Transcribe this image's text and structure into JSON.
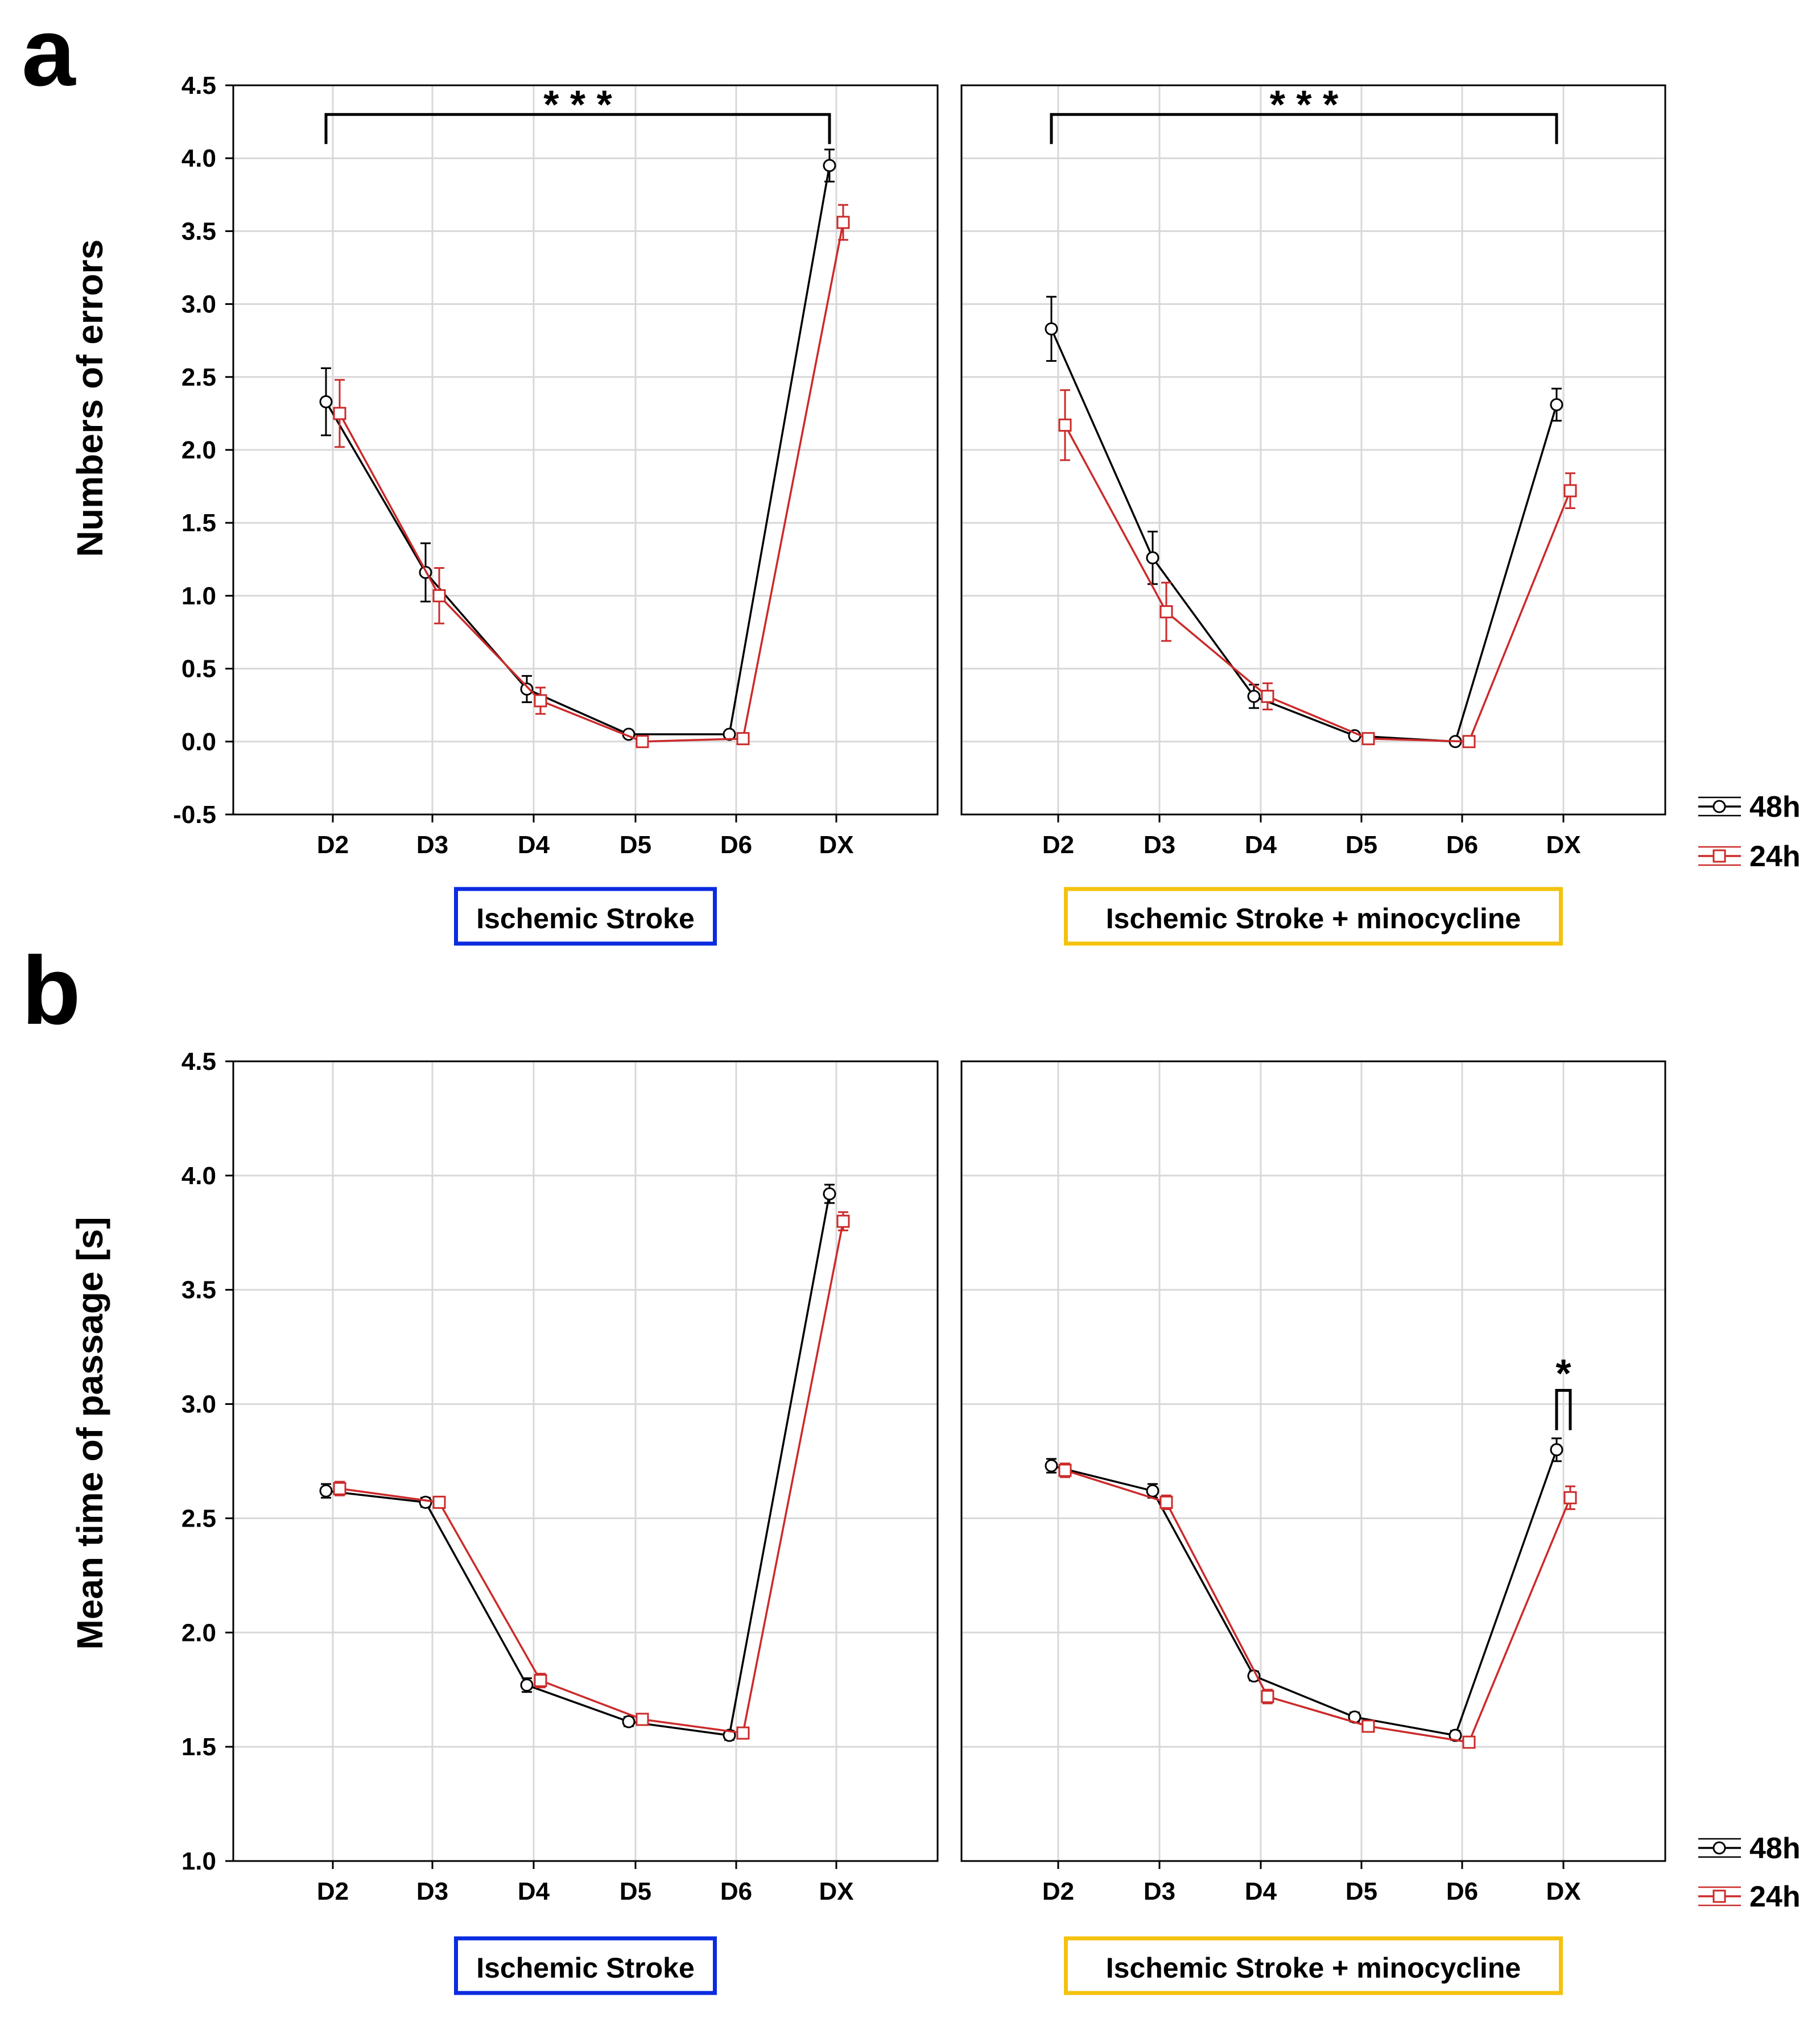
{
  "panels": [
    {
      "letter": "a",
      "ylabel": "Numbers of errors",
      "legend": {
        "entries": [
          "48h",
          "24h"
        ]
      },
      "colors": {
        "s48": "#000000",
        "s24": "#cc2a2a"
      },
      "chart_data": [
        {
          "type": "line",
          "group_label": "Ischemic Stroke",
          "group_color": "#0a2be0",
          "categories": [
            "D2",
            "D3",
            "D4",
            "D5",
            "D6",
            "DX"
          ],
          "ylim": [
            -0.5,
            4.5
          ],
          "yticks": [
            "-0.5",
            "0.0",
            "0.5",
            "1.0",
            "1.5",
            "2.0",
            "2.5",
            "3.0",
            "3.5",
            "4.0",
            "4.5"
          ],
          "grid": true,
          "series": [
            {
              "name": "48h",
              "values": [
                2.33,
                1.16,
                0.36,
                0.05,
                0.05,
                3.95
              ],
              "errors": [
                0.23,
                0.2,
                0.09,
                0.02,
                0.02,
                0.11
              ]
            },
            {
              "name": "24h",
              "values": [
                2.25,
                1.0,
                0.28,
                0.0,
                0.02,
                3.56
              ],
              "errors": [
                0.23,
                0.19,
                0.09,
                0.02,
                0.02,
                0.12
              ]
            }
          ],
          "annotations": [
            {
              "text": "* * *",
              "type": "bracket",
              "from": "D2",
              "to": "DX",
              "y": 4.3
            }
          ]
        },
        {
          "type": "line",
          "group_label": "Ischemic Stroke + minocycline",
          "group_color": "#f4c20d",
          "categories": [
            "D2",
            "D3",
            "D4",
            "D5",
            "D6",
            "DX"
          ],
          "ylim": [
            -0.5,
            4.5
          ],
          "grid": true,
          "series": [
            {
              "name": "48h",
              "values": [
                2.83,
                1.26,
                0.31,
                0.04,
                0.0,
                2.31
              ],
              "errors": [
                0.22,
                0.18,
                0.08,
                0.02,
                0.01,
                0.11
              ]
            },
            {
              "name": "24h",
              "values": [
                2.17,
                0.89,
                0.31,
                0.02,
                0.0,
                1.72
              ],
              "errors": [
                0.24,
                0.2,
                0.09,
                0.02,
                0.01,
                0.12
              ]
            }
          ],
          "annotations": [
            {
              "text": "* * *",
              "type": "bracket",
              "from": "D2",
              "to": "DX",
              "y": 4.3
            }
          ]
        }
      ]
    },
    {
      "letter": "b",
      "ylabel": "Mean time of passage [s]",
      "legend": {
        "entries": [
          "48h",
          "24h"
        ]
      },
      "colors": {
        "s48": "#000000",
        "s24": "#cc2a2a"
      },
      "chart_data": [
        {
          "type": "line",
          "group_label": "Ischemic Stroke",
          "group_color": "#0a2be0",
          "categories": [
            "D2",
            "D3",
            "D4",
            "D5",
            "D6",
            "DX"
          ],
          "ylim": [
            1.0,
            4.5
          ],
          "yticks": [
            "1.0",
            "1.5",
            "2.0",
            "2.5",
            "3.0",
            "3.5",
            "4.0",
            "4.5"
          ],
          "grid": true,
          "series": [
            {
              "name": "48h",
              "values": [
                2.62,
                2.57,
                1.77,
                1.61,
                1.55,
                3.92
              ],
              "errors": [
                0.03,
                0.02,
                0.03,
                0.02,
                0.02,
                0.04
              ]
            },
            {
              "name": "24h",
              "values": [
                2.63,
                2.57,
                1.79,
                1.62,
                1.56,
                3.8
              ],
              "errors": [
                0.03,
                0.02,
                0.03,
                0.02,
                0.02,
                0.04
              ]
            }
          ]
        },
        {
          "type": "line",
          "group_label": "Ischemic Stroke + minocycline",
          "group_color": "#f4c20d",
          "categories": [
            "D2",
            "D3",
            "D4",
            "D5",
            "D6",
            "DX"
          ],
          "ylim": [
            1.0,
            4.5
          ],
          "grid": true,
          "series": [
            {
              "name": "48h",
              "values": [
                2.73,
                2.62,
                1.81,
                1.63,
                1.55,
                2.8
              ],
              "errors": [
                0.03,
                0.03,
                0.02,
                0.02,
                0.02,
                0.05
              ]
            },
            {
              "name": "24h",
              "values": [
                2.71,
                2.57,
                1.72,
                1.59,
                1.52,
                2.59
              ],
              "errors": [
                0.03,
                0.03,
                0.03,
                0.02,
                0.02,
                0.05
              ]
            }
          ],
          "annotations": [
            {
              "text": "*",
              "type": "bracket",
              "at": "DX",
              "y": 3.06
            }
          ]
        }
      ]
    }
  ]
}
